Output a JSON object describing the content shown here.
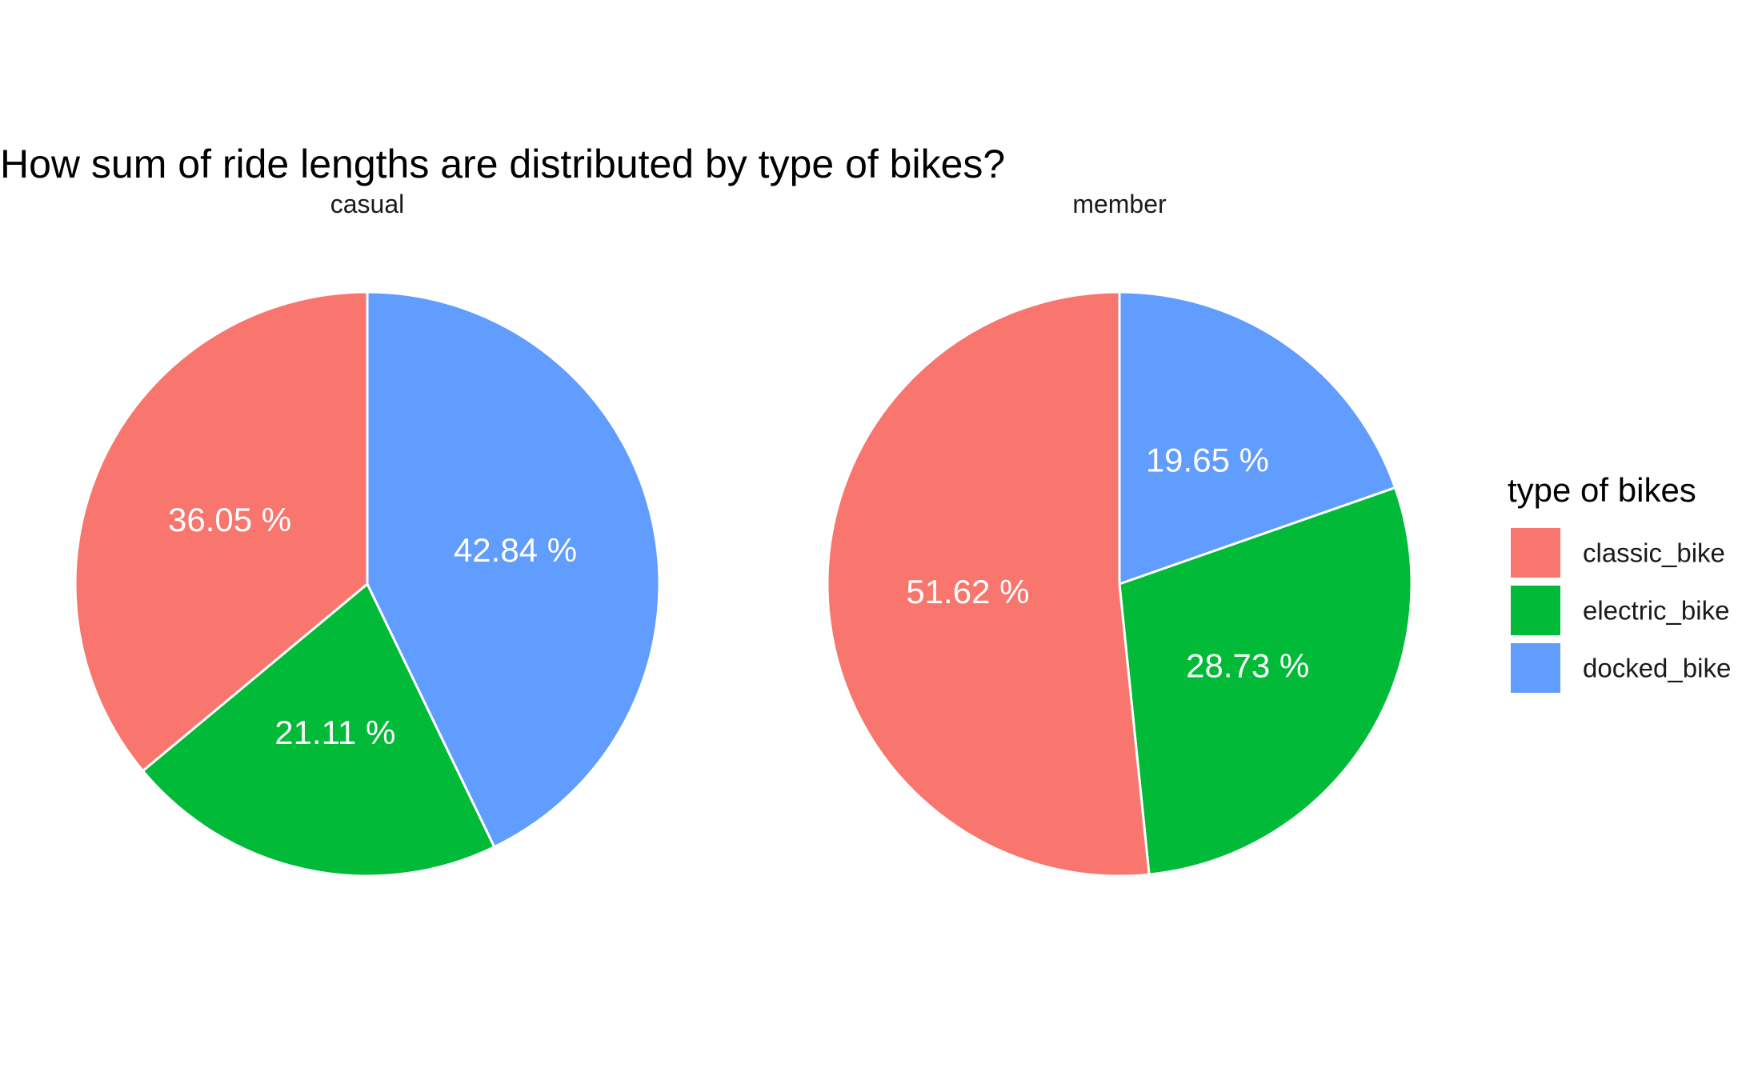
{
  "chart_data": {
    "type": "pie",
    "title": "How sum of ride lengths are distributed by type of bikes?",
    "legend": {
      "title": "type of bikes",
      "position": "right",
      "entries": [
        "classic_bike",
        "electric_bike",
        "docked_bike"
      ]
    },
    "colors": {
      "classic_bike": "#F8766D",
      "electric_bike": "#00BA38",
      "docked_bike": "#619CFF"
    },
    "facets": [
      {
        "name": "casual",
        "slices": [
          {
            "category": "docked_bike",
            "value": 42.84,
            "label": "42.84 %"
          },
          {
            "category": "electric_bike",
            "value": 21.11,
            "label": "21.11 %"
          },
          {
            "category": "classic_bike",
            "value": 36.05,
            "label": "36.05 %"
          }
        ]
      },
      {
        "name": "member",
        "slices": [
          {
            "category": "docked_bike",
            "value": 19.65,
            "label": "19.65 %"
          },
          {
            "category": "electric_bike",
            "value": 28.73,
            "label": "28.73 %"
          },
          {
            "category": "classic_bike",
            "value": 51.62,
            "label": "51.62 %"
          }
        ]
      }
    ]
  }
}
